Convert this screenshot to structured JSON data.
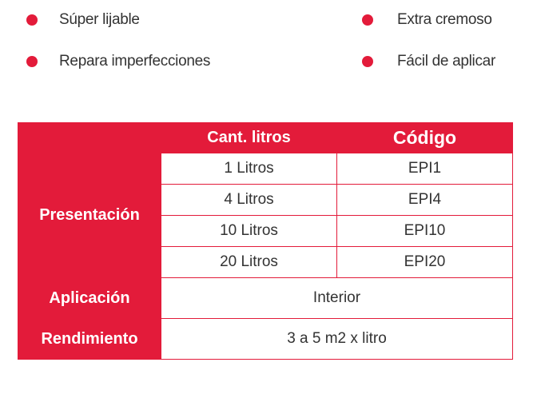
{
  "features": [
    {
      "label": "Súper lijable"
    },
    {
      "label": "Repara imperfecciones"
    },
    {
      "label": "Extra cremoso"
    },
    {
      "label": "Fácil de aplicar"
    }
  ],
  "colors": {
    "accent": "#e31b3a",
    "text": "#333333"
  },
  "table": {
    "headers": [
      "Cant. litros",
      "Código"
    ],
    "presentacion_label": "Presentación",
    "rows": [
      {
        "litros": "1 Litros",
        "codigo": "EPI1"
      },
      {
        "litros": "4 Litros",
        "codigo": "EPI4"
      },
      {
        "litros": "10 Litros",
        "codigo": "EPI10"
      },
      {
        "litros": "20 Litros",
        "codigo": "EPI20"
      }
    ],
    "aplicacion_label": "Aplicación",
    "aplicacion_value": "Interior",
    "rendimiento_label": "Rendimiento",
    "rendimiento_value": "3 a 5 m2 x litro"
  }
}
